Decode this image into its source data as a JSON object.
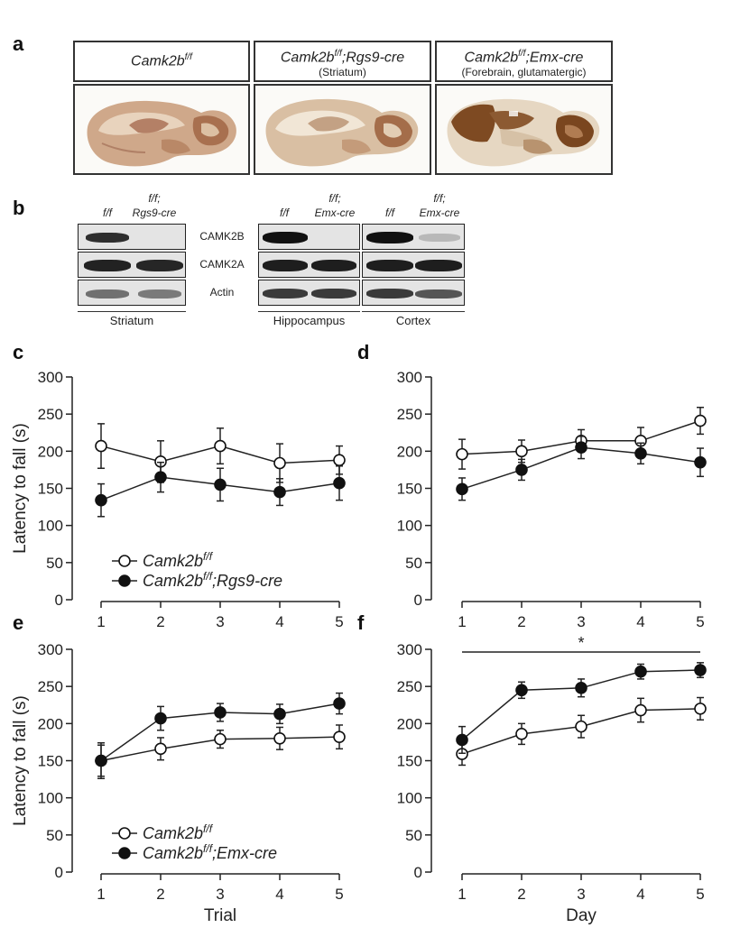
{
  "panels": {
    "a": "a",
    "b": "b",
    "c": "c",
    "d": "d",
    "e": "e",
    "f": "f"
  },
  "panel_a": {
    "boxes": [
      {
        "genotype_base": "Camk2b",
        "genotype_sup": "f/f",
        "genotype_suffix": "",
        "subtitle": ""
      },
      {
        "genotype_base": "Camk2b",
        "genotype_sup": "f/f",
        "genotype_suffix": ";Rgs9-cre",
        "subtitle": "(Striatum)"
      },
      {
        "genotype_base": "Camk2b",
        "genotype_sup": "f/f",
        "genotype_suffix": ";Emx-cre",
        "subtitle": "(Forebrain, glutamatergic)"
      }
    ]
  },
  "panel_b": {
    "lane_labels": {
      "striatum_ff": "f/f",
      "striatum_cre_1": "f/f;",
      "striatum_cre_2": "Rgs9-cre",
      "hippo_ff": "f/f",
      "hippo_cre_1": "f/f;",
      "hippo_cre_2": "Emx-cre",
      "cortex_ff": "f/f",
      "cortex_cre_1": "f/f;",
      "cortex_cre_2": "Emx-cre"
    },
    "proteins": [
      "CAMK2B",
      "CAMK2A",
      "Actin"
    ],
    "regions": [
      "Striatum",
      "Hippocampus",
      "Cortex"
    ]
  },
  "chart_data": [
    {
      "panel": "c",
      "type": "line",
      "x": [
        1,
        2,
        3,
        4,
        5
      ],
      "xlabel": "",
      "ylabel": "Latency to fall (s)",
      "ylim": [
        0,
        300
      ],
      "yticks": [
        0,
        50,
        100,
        150,
        200,
        250,
        300
      ],
      "series": [
        {
          "name": "Camk2b f/f",
          "marker": "open",
          "values": [
            207,
            186,
            207,
            184,
            188
          ],
          "err": [
            30,
            28,
            24,
            26,
            19
          ]
        },
        {
          "name": "Camk2b f/f;Rgs9-cre",
          "marker": "filled",
          "values": [
            134,
            165,
            155,
            145,
            157
          ],
          "err": [
            22,
            20,
            22,
            18,
            23
          ]
        }
      ],
      "legend": [
        {
          "base": "Camk2b",
          "sup": "f/f",
          "suffix": ""
        },
        {
          "base": "Camk2b",
          "sup": "f/f",
          "suffix": ";Rgs9-cre"
        }
      ]
    },
    {
      "panel": "d",
      "type": "line",
      "x": [
        1,
        2,
        3,
        4,
        5
      ],
      "xlabel": "",
      "ylabel": "",
      "ylim": [
        0,
        300
      ],
      "yticks": [
        0,
        50,
        100,
        150,
        200,
        250,
        300
      ],
      "series": [
        {
          "name": "Camk2b f/f",
          "marker": "open",
          "values": [
            196,
            200,
            214,
            214,
            241
          ],
          "err": [
            20,
            15,
            15,
            18,
            18
          ]
        },
        {
          "name": "Camk2b f/f;Rgs9-cre",
          "marker": "filled",
          "values": [
            149,
            175,
            205,
            197,
            185
          ],
          "err": [
            15,
            14,
            15,
            14,
            19
          ]
        }
      ]
    },
    {
      "panel": "e",
      "type": "line",
      "x": [
        1,
        2,
        3,
        4,
        5
      ],
      "xlabel": "Trial",
      "ylabel": "Latency to fall (s)",
      "ylim": [
        0,
        300
      ],
      "yticks": [
        0,
        50,
        100,
        150,
        200,
        250,
        300
      ],
      "series": [
        {
          "name": "Camk2b f/f",
          "marker": "open",
          "values": [
            150,
            166,
            179,
            180,
            182
          ],
          "err": [
            24,
            15,
            12,
            15,
            16
          ]
        },
        {
          "name": "Camk2b f/f;Emx-cre",
          "marker": "filled",
          "values": [
            150,
            207,
            215,
            213,
            227
          ],
          "err": [
            21,
            16,
            12,
            13,
            14
          ]
        }
      ],
      "legend": [
        {
          "base": "Camk2b",
          "sup": "f/f",
          "suffix": ""
        },
        {
          "base": "Camk2b",
          "sup": "f/f",
          "suffix": ";Emx-cre"
        }
      ]
    },
    {
      "panel": "f",
      "type": "line",
      "x": [
        1,
        2,
        3,
        4,
        5
      ],
      "xlabel": "Day",
      "ylabel": "",
      "ylim": [
        0,
        300
      ],
      "yticks": [
        0,
        50,
        100,
        150,
        200,
        250,
        300
      ],
      "series": [
        {
          "name": "Camk2b f/f",
          "marker": "open",
          "values": [
            159,
            186,
            196,
            218,
            220
          ],
          "err": [
            15,
            14,
            15,
            16,
            15
          ]
        },
        {
          "name": "Camk2b f/f;Emx-cre",
          "marker": "filled",
          "values": [
            178,
            245,
            248,
            270,
            272
          ],
          "err": [
            18,
            11,
            12,
            10,
            10
          ]
        }
      ],
      "annotation": "*"
    }
  ]
}
